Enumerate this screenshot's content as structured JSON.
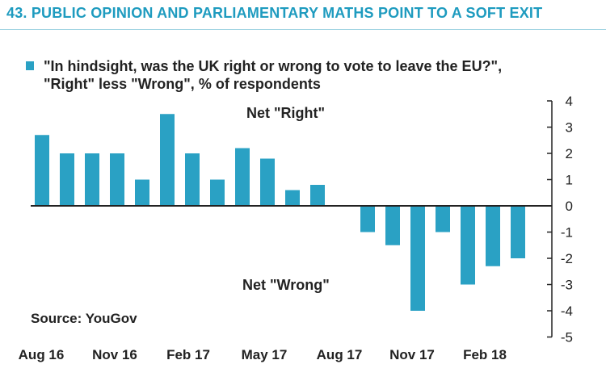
{
  "header": {
    "title": "43. PUBLIC OPINION AND PARLIAMENTARY MATHS POINT TO A SOFT EXIT"
  },
  "legend": {
    "line1": "\"In hindsight, was the UK right or wrong to vote to leave the EU?\",",
    "line2": "\"Right\" less \"Wrong\", % of respondents"
  },
  "source": "Source: YouGov",
  "colors": {
    "accent": "#1e9bbf",
    "bar": "#2aa1c4"
  },
  "chart_data": {
    "type": "bar",
    "title": "\"In hindsight, was the UK right or wrong to vote to leave the EU?\", \"Right\" less \"Wrong\", % of respondents",
    "series": [
      {
        "name": "Right less Wrong (%)",
        "values": [
          2.7,
          2.0,
          2.0,
          2.0,
          1.0,
          3.5,
          2.0,
          1.0,
          2.2,
          1.8,
          0.6,
          0.8,
          null,
          -1.0,
          -1.5,
          -4.0,
          -1.0,
          -3.0,
          -2.3,
          -2.0
        ]
      }
    ],
    "x_tick_labels": [
      "Aug 16",
      "Nov 16",
      "Feb 17",
      "May 17",
      "Aug 17",
      "Nov 17",
      "Feb 18"
    ],
    "y_ticks": [
      4,
      3,
      2,
      1,
      0,
      -1,
      -2,
      -3,
      -4,
      -5
    ],
    "ylim": [
      -5,
      4
    ],
    "yaxis_position": "right",
    "annotations": [
      "Net \"Right\"",
      "Net \"Wrong\""
    ]
  }
}
